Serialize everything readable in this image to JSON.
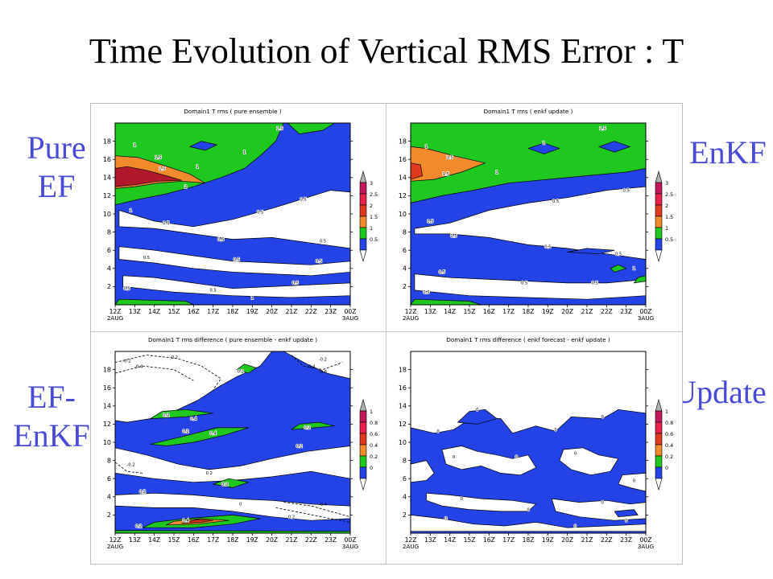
{
  "slide": {
    "title": "Time Evolution of Vertical RMS Error : T",
    "labels": {
      "top_left": "Pure\nEF",
      "top_right": "EnKF",
      "bottom_left": "EF-\nEnKF",
      "bottom_right": "Update"
    }
  },
  "chart_data": [
    {
      "type": "heatmap",
      "title": "Domain1 T rms ( pure ensemble )",
      "x_ticks": [
        "12Z",
        "13Z",
        "14Z",
        "15Z",
        "16Z",
        "17Z",
        "18Z",
        "19Z",
        "20Z",
        "21Z",
        "22Z",
        "23Z",
        "00Z"
      ],
      "x_dates": {
        "12Z": "2AUG",
        "00Z": "3AUG"
      },
      "y_ticks": [
        "2",
        "4",
        "6",
        "8",
        "10",
        "12",
        "14",
        "16",
        "18"
      ],
      "ylim": [
        0,
        20
      ],
      "legend_levels": [
        "0.5",
        "1",
        "1.5",
        "2",
        "2.5",
        "3"
      ],
      "colors": {
        "0.5": "#2343e6",
        "1": "#1ec81e",
        "1.5": "#f08a2a",
        "2": "#e03a1e",
        "2.5": "#d7191c",
        "3": "#c2185b"
      },
      "contour_labels": [
        "0.5",
        "1",
        "1.5",
        "2",
        "2.5"
      ]
    },
    {
      "type": "heatmap",
      "title": "Domain1 T rms ( enkf update )",
      "x_ticks": [
        "12Z",
        "13Z",
        "14Z",
        "15Z",
        "16Z",
        "17Z",
        "18Z",
        "19Z",
        "20Z",
        "21Z",
        "22Z",
        "23Z",
        "00Z"
      ],
      "x_dates": {
        "12Z": "2AUG",
        "00Z": "3AUG"
      },
      "y_ticks": [
        "2",
        "4",
        "6",
        "8",
        "10",
        "12",
        "14",
        "16",
        "18"
      ],
      "ylim": [
        0,
        20
      ],
      "legend_levels": [
        "0.5",
        "1",
        "1.5",
        "2",
        "2.5",
        "3"
      ],
      "contour_labels": [
        "0.5",
        "1",
        "1.5"
      ]
    },
    {
      "type": "heatmap",
      "title": "Domain1 T rms difference ( pure ensemble - enkf update )",
      "x_ticks": [
        "12Z",
        "13Z",
        "14Z",
        "15Z",
        "16Z",
        "17Z",
        "18Z",
        "19Z",
        "20Z",
        "21Z",
        "22Z",
        "23Z",
        "00Z"
      ],
      "x_dates": {
        "12Z": "2AUG",
        "00Z": "3AUG"
      },
      "y_ticks": [
        "2",
        "4",
        "6",
        "8",
        "10",
        "12",
        "14",
        "16",
        "18"
      ],
      "ylim": [
        0,
        20
      ],
      "legend_levels": [
        "0",
        "0.2",
        "0.4",
        "0.6",
        "0.8",
        "1"
      ],
      "contour_labels": [
        "-0.2",
        "-0.4",
        "-0.6",
        "0",
        "0.2",
        "0.4"
      ]
    },
    {
      "type": "heatmap",
      "title": "Domain1 T rms difference ( enkf forecast - enkf update )",
      "x_ticks": [
        "12Z",
        "13Z",
        "14Z",
        "15Z",
        "16Z",
        "17Z",
        "18Z",
        "19Z",
        "20Z",
        "21Z",
        "22Z",
        "23Z",
        "00Z"
      ],
      "x_dates": {
        "12Z": "2AUG",
        "00Z": "3AUG"
      },
      "y_ticks": [
        "2",
        "4",
        "6",
        "8",
        "10",
        "12",
        "14",
        "16",
        "18"
      ],
      "ylim": [
        0,
        20
      ],
      "legend_levels": [
        "0",
        "0.2",
        "0.4",
        "0.6",
        "0.8",
        "1"
      ],
      "contour_labels": [
        "0"
      ]
    }
  ],
  "palette": {
    "blue": "#2343e6",
    "green": "#1ec81e",
    "orange": "#f08a2a",
    "red": "#e03a1e",
    "darkred": "#b2182b",
    "magenta": "#c2185b",
    "label_blue": "#4a4ad8"
  }
}
